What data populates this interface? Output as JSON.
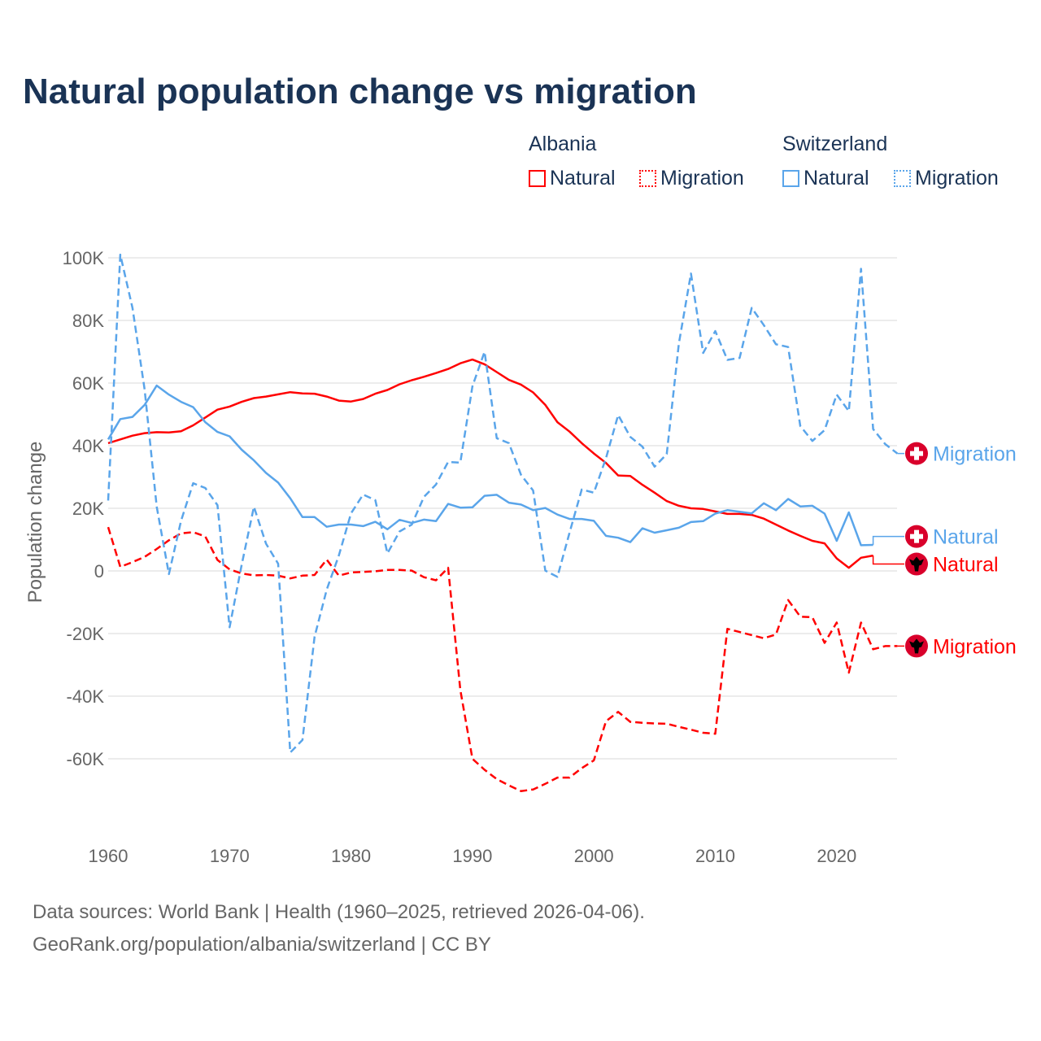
{
  "title": "Natural population change vs migration",
  "legend": {
    "groups": [
      {
        "country": "Albania",
        "items": [
          "Natural",
          "Migration"
        ],
        "color": "#ff0000"
      },
      {
        "country": "Switzerland",
        "items": [
          "Natural",
          "Migration"
        ],
        "color": "#5aa5ea"
      }
    ]
  },
  "footer": {
    "line1": "Data sources: World Bank | Health (1960–2025, retrieved 2026-04-06).",
    "line2": "GeoRank.org/population/albania/switzerland | CC BY"
  },
  "chart_data": {
    "type": "line",
    "title": "Natural population change vs migration",
    "xlabel": "",
    "ylabel": "Population change",
    "xlim": [
      1960,
      2025
    ],
    "ylim": [
      -80000,
      100000
    ],
    "x_ticks": [
      "1960",
      "1970",
      "1980",
      "1990",
      "2000",
      "2010",
      "2020"
    ],
    "y_ticks": [
      {
        "v": 100,
        "label": "100K"
      },
      {
        "v": 80,
        "label": "80K"
      },
      {
        "v": 60,
        "label": "60K"
      },
      {
        "v": 40,
        "label": "40K"
      },
      {
        "v": 20,
        "label": "20K"
      },
      {
        "v": 0,
        "label": "0"
      },
      {
        "v": -20,
        "label": "-20K"
      },
      {
        "v": -40,
        "label": "-40K"
      },
      {
        "v": -60,
        "label": "-60K"
      }
    ],
    "units": "thousands",
    "grid": true,
    "legend_position": "top-right",
    "series": [
      {
        "name": "Albania Natural",
        "end_label": "Natural",
        "flag": "albania-flag",
        "color": "#ff0000",
        "dash": false,
        "start": 1960,
        "label_value": 2.2,
        "values": [
          40.8,
          42,
          43.2,
          44,
          44.3,
          44.2,
          44.6,
          46.5,
          49,
          51.5,
          52.5,
          54,
          55.2,
          55.7,
          56.4,
          57.1,
          56.7,
          56.6,
          55.7,
          54.4,
          54.1,
          54.9,
          56.6,
          57.8,
          59.6,
          60.9,
          62,
          63.2,
          64.5,
          66.3,
          67.5,
          66,
          63.5,
          61,
          59.5,
          57,
          53,
          47.5,
          44.5,
          40.8,
          37.5,
          34.5,
          30.5,
          30.3,
          27.5,
          25,
          22.3,
          20.8,
          20,
          19.8,
          19,
          18.2,
          18.2,
          17.9,
          16.7,
          14.8,
          12.9,
          11.2,
          9.6,
          8.8,
          4,
          1,
          4.2,
          4.9
        ]
      },
      {
        "name": "Albania Migration",
        "end_label": "Migration",
        "flag": "albania-flag",
        "color": "#ff0000",
        "dash": true,
        "start": 1960,
        "label_value": -24,
        "values": [
          14,
          1.3,
          2.8,
          4.5,
          7,
          9.8,
          12,
          12.4,
          11,
          3.5,
          0.5,
          -0.8,
          -1.4,
          -1.3,
          -1.5,
          -2.4,
          -1.5,
          -1.3,
          3.6,
          -1.5,
          -0.5,
          -0.3,
          -0.1,
          0.3,
          0.3,
          0.1,
          -2,
          -3,
          1,
          -38,
          -60,
          -63.5,
          -66.5,
          -68.5,
          -70.3,
          -69.8,
          -68,
          -66,
          -66,
          -63,
          -60.5,
          -48,
          -45,
          -48.2,
          -48.5,
          -48.7,
          -48.8,
          -49.8,
          -50.7,
          -51.7,
          -52,
          -18.5,
          -19.5,
          -20.5,
          -21.5,
          -20.3,
          -9.3,
          -14.6,
          -14.8,
          -23,
          -16.5,
          -32.5,
          -16.5,
          -25,
          -24,
          -24
        ]
      },
      {
        "name": "Switzerland Natural",
        "end_label": "Natural",
        "flag": "switzerland-flag",
        "color": "#5aa5ea",
        "dash": false,
        "start": 1960,
        "label_value": 11,
        "values": [
          42,
          48.5,
          49.2,
          53,
          59.2,
          56.3,
          54,
          52.3,
          47.5,
          44.4,
          43,
          38.7,
          35.3,
          31.3,
          28.2,
          23.2,
          17.2,
          17.2,
          14.1,
          14.8,
          14.8,
          14.3,
          15.7,
          13.3,
          16.3,
          15.3,
          16.4,
          15.9,
          21.4,
          20.2,
          20.3,
          24,
          24.3,
          21.8,
          21.2,
          19.4,
          20.1,
          18,
          16.6,
          16.6,
          16,
          11.2,
          10.6,
          9.2,
          13.6,
          12.2,
          13,
          13.8,
          15.6,
          15.9,
          18.3,
          19.4,
          18.9,
          18.4,
          21.6,
          19.4,
          23,
          20.6,
          20.8,
          18.3,
          9.6,
          18.7,
          8.2,
          8.3
        ]
      },
      {
        "name": "Switzerland Migration",
        "end_label": "Migration",
        "flag": "switzerland-flag",
        "color": "#5aa5ea",
        "dash": true,
        "start": 1960,
        "label_value": 37.5,
        "values": [
          22.5,
          101,
          84,
          58,
          20.5,
          -1,
          16,
          28,
          26.5,
          21,
          -18,
          2,
          20.5,
          8.7,
          2.3,
          -58,
          -54,
          -21,
          -6,
          5,
          18.4,
          24.4,
          22.6,
          5.6,
          12.6,
          14.8,
          23.6,
          27.6,
          34.8,
          34.6,
          59,
          70,
          42.4,
          40.8,
          30.7,
          25.7,
          0.1,
          -1.9,
          12.2,
          26,
          25,
          36,
          49.8,
          42.8,
          39.7,
          33.3,
          37.3,
          72.6,
          95,
          69.6,
          76.6,
          67.4,
          68,
          84,
          78.5,
          72.4,
          71.5,
          46.3,
          41.5,
          45,
          56.3,
          51,
          96.5,
          45.3,
          40.5,
          37.5
        ]
      }
    ]
  }
}
